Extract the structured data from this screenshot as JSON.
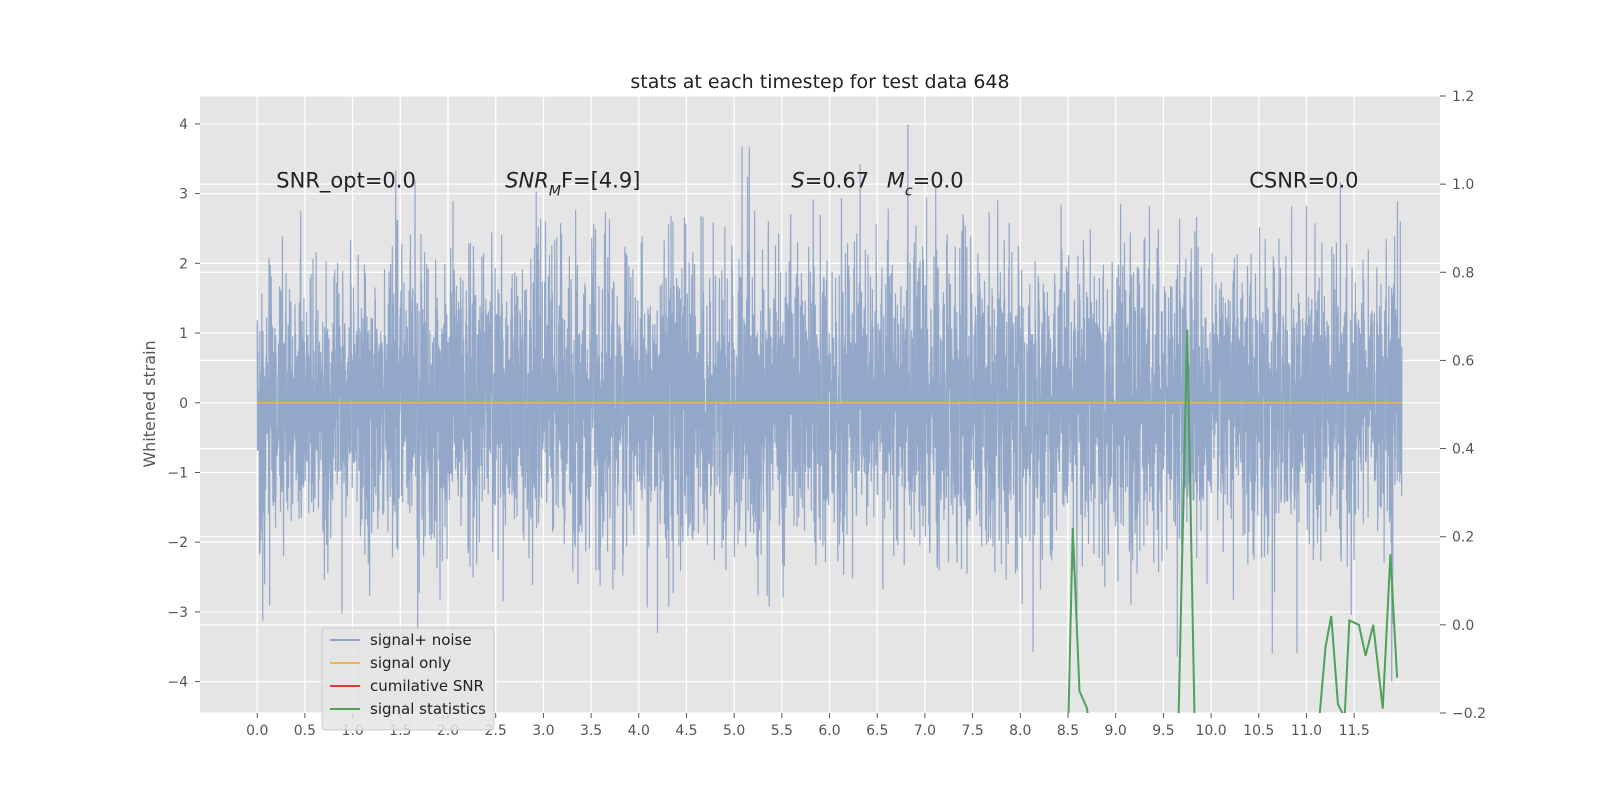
{
  "chart_data": {
    "type": "line",
    "title": "stats at each timestep for test data 648",
    "ylabel": "Whitened strain",
    "xlim": [
      -0.6,
      12.4
    ],
    "ylim": [
      -4.45,
      4.4
    ],
    "y2lim": [
      -0.2,
      1.2
    ],
    "x_ticks": [
      0.0,
      0.5,
      1.0,
      1.5,
      2.0,
      2.5,
      3.0,
      3.5,
      4.0,
      4.5,
      5.0,
      5.5,
      6.0,
      6.5,
      7.0,
      7.5,
      8.0,
      8.5,
      9.0,
      9.5,
      10.0,
      10.5,
      11.0,
      11.5
    ],
    "x_tick_labels": [
      "0.0",
      "0.5",
      "1.0",
      "1.5",
      "2.0",
      "2.5",
      "3.0",
      "3.5",
      "4.0",
      "4.5",
      "5.0",
      "5.5",
      "6.0",
      "6.5",
      "7.0",
      "7.5",
      "8.0",
      "8.5",
      "9.0",
      "9.5",
      "10.0",
      "10.5",
      "11.0",
      "11.5"
    ],
    "y_ticks": [
      -4,
      -3,
      -2,
      -1,
      0,
      1,
      2,
      3,
      4
    ],
    "y_tick_labels": [
      "−4",
      "−3",
      "−2",
      "−1",
      "0",
      "1",
      "2",
      "3",
      "4"
    ],
    "y2_ticks": [
      -0.2,
      0.0,
      0.2,
      0.4,
      0.6,
      0.8,
      1.0,
      1.2
    ],
    "y2_tick_labels": [
      "−0.2",
      "0.0",
      "0.2",
      "0.4",
      "0.6",
      "0.8",
      "1.0",
      "1.2"
    ],
    "grid": true,
    "legend_position": "lower-left",
    "annotations": [
      {
        "text": "SNR_opt=0.0",
        "x": 0.2,
        "y": 3.2
      },
      {
        "text": "SNR",
        "sub": "M",
        "after": "F=[4.9]",
        "x": 2.6,
        "y": 3.2,
        "italic": true
      },
      {
        "text": "S",
        "after": "=0.67",
        "x": 5.6,
        "y": 3.2,
        "italic": true
      },
      {
        "text": "M",
        "sub": "c",
        "after": "=0.0",
        "x": 6.6,
        "y": 3.2,
        "italic": true
      },
      {
        "text": "CSNR=0.0",
        "x": 10.4,
        "y": 3.2
      }
    ],
    "series": [
      {
        "name": "signal+ noise",
        "color": "#8ea3c7",
        "axis": "left",
        "x_start": 0.0,
        "x_end": 12.0,
        "n_points": 6000,
        "envelope": "dense noise mostly between −2 and 2 with spikes to about ±4"
      },
      {
        "name": "signal only",
        "color": "#f0b452",
        "axis": "left",
        "x": [
          0.0,
          12.0
        ],
        "y": [
          0.0,
          0.0
        ]
      },
      {
        "name": "cumilative SNR",
        "color": "#e03a2b",
        "axis": "right",
        "x": [],
        "y": []
      },
      {
        "name": "signal statistics",
        "color": "#4ea05a",
        "axis": "right",
        "x": [
          8.5,
          8.55,
          8.62,
          8.7,
          8.75,
          9.65,
          9.75,
          9.83,
          9.9,
          11.1,
          11.2,
          11.26,
          11.33,
          11.4,
          11.45,
          11.55,
          11.62,
          11.7,
          11.8,
          11.88,
          11.95
        ],
        "y": [
          -0.25,
          0.22,
          -0.15,
          -0.19,
          -0.3,
          -0.3,
          0.67,
          -0.25,
          -0.3,
          -0.3,
          -0.05,
          0.02,
          -0.18,
          -0.21,
          0.01,
          0.0,
          -0.07,
          0.0,
          -0.19,
          0.16,
          -0.12
        ]
      }
    ]
  }
}
